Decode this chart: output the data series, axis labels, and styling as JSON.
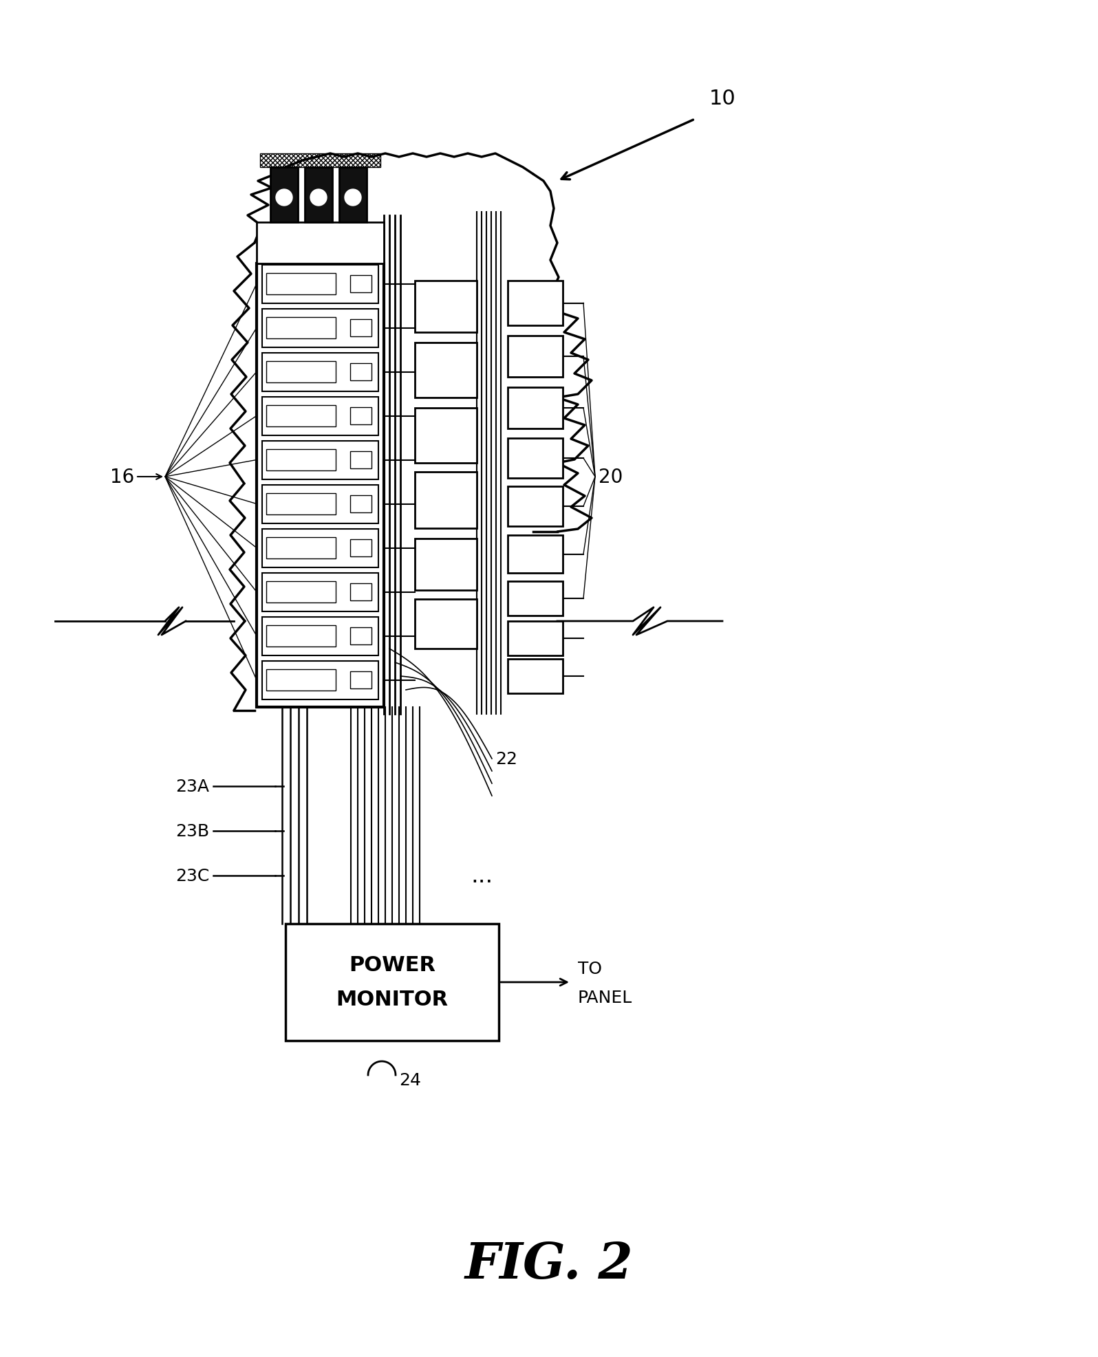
{
  "background_color": "#ffffff",
  "fig_label": "FIG. 2",
  "label_10": "10",
  "label_16": "16",
  "label_20": "20",
  "label_22": "22",
  "label_23A": "23A",
  "label_23B": "23B",
  "label_23C": "23C",
  "label_24": "24",
  "label_to_panel": "TO\nPANEL",
  "power_monitor_text": "POWER\nMONITOR",
  "num_breakers": 10
}
